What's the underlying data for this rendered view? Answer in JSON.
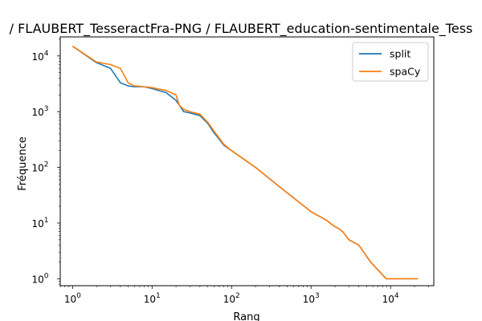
{
  "chart_data": {
    "type": "line",
    "title": "/ FLAUBERT_TesseractFra-PNG / FLAUBERT_education-sentimentale_Tess",
    "xlabel": "Rang",
    "ylabel": "Fréquence",
    "xscale": "log",
    "yscale": "log",
    "xlim": [
      0.7,
      35000
    ],
    "ylim": [
      0.75,
      22000
    ],
    "x_ticks": [
      {
        "base": "10",
        "exp": "0",
        "value": 1
      },
      {
        "base": "10",
        "exp": "1",
        "value": 10
      },
      {
        "base": "10",
        "exp": "2",
        "value": 100
      },
      {
        "base": "10",
        "exp": "3",
        "value": 1000
      },
      {
        "base": "10",
        "exp": "4",
        "value": 10000
      }
    ],
    "y_ticks": [
      {
        "base": "10",
        "exp": "0",
        "value": 1
      },
      {
        "base": "10",
        "exp": "1",
        "value": 10
      },
      {
        "base": "10",
        "exp": "2",
        "value": 100
      },
      {
        "base": "10",
        "exp": "3",
        "value": 1000
      },
      {
        "base": "10",
        "exp": "4",
        "value": 10000
      }
    ],
    "grid": false,
    "legend_position": "top-right",
    "series": [
      {
        "name": "split",
        "color": "#1f77b4",
        "x": [
          1,
          2,
          3,
          4,
          5,
          6,
          8,
          10,
          15,
          20,
          25,
          30,
          40,
          50,
          60,
          80,
          100,
          200,
          400,
          1000,
          1300,
          1600,
          1900,
          2200,
          2500,
          3000,
          4000,
          5600,
          8800,
          22000
        ],
        "y": [
          15000,
          7600,
          6000,
          3300,
          2900,
          2800,
          2800,
          2600,
          2200,
          1600,
          1000,
          950,
          850,
          620,
          420,
          250,
          200,
          100,
          45,
          16,
          13,
          11,
          9,
          8,
          7,
          5,
          4,
          2,
          1,
          1
        ]
      },
      {
        "name": "spaCy",
        "color": "#ff7f0e",
        "x": [
          1,
          2,
          3,
          4,
          5,
          6,
          8,
          10,
          15,
          20,
          22,
          25,
          30,
          40,
          50,
          60,
          80,
          100,
          200,
          400,
          1000,
          1300,
          1600,
          1900,
          2200,
          2500,
          3000,
          4000,
          5600,
          8800,
          22000
        ],
        "y": [
          15000,
          7800,
          7000,
          6000,
          3300,
          2900,
          2800,
          2700,
          2400,
          2000,
          1300,
          1100,
          1000,
          900,
          650,
          450,
          260,
          200,
          100,
          45,
          16,
          13,
          11,
          9,
          8,
          7,
          5,
          4,
          2,
          1,
          1
        ]
      }
    ]
  }
}
